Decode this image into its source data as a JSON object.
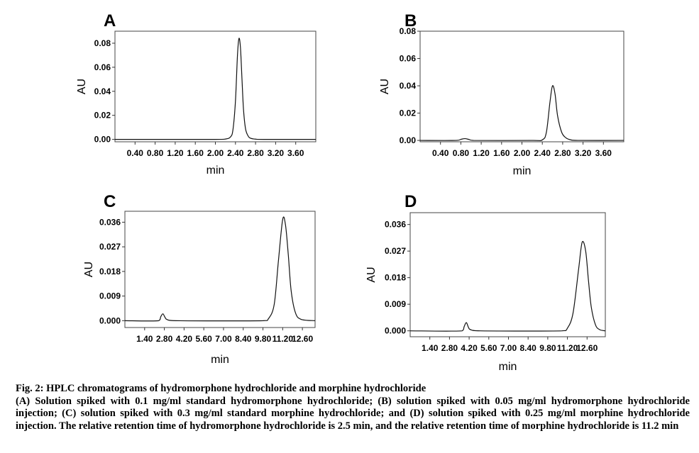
{
  "figure": {
    "caption_title": "Fig. 2: HPLC chromatograms of hydromorphone hydrochloride and morphine hydrochloride",
    "caption_body": "(A) Solution spiked with 0.1 mg/ml standard hydromorphone hydrochloride; (B) solution spiked with 0.05 mg/ml hydromorphone hydrochloride injection; (C) solution spiked with 0.3 mg/ml standard morphine hydrochloride; and (D) solution spiked with 0.25 mg/ml morphine hydrochloride injection. The relative retention time of hydromorphone hydrochloride is 2.5 min, and the relative retention time of morphine hydrochloride is 11.2 min"
  },
  "chart_data": [
    {
      "panel": "A",
      "type": "line",
      "xlabel": "min",
      "ylabel": "AU",
      "xlim": [
        0.0,
        4.0
      ],
      "ylim": [
        -0.002,
        0.09
      ],
      "xticks": [
        "0.40",
        "0.80",
        "1.20",
        "1.60",
        "2.00",
        "2.40",
        "2.80",
        "3.20",
        "3.60"
      ],
      "yticks": [
        "0.00",
        "0.02",
        "0.04",
        "0.06",
        "0.08"
      ],
      "grid": false,
      "series": [
        {
          "x": [
            0.0,
            1.0,
            2.0,
            2.2,
            2.3,
            2.35,
            2.4,
            2.44,
            2.47,
            2.5,
            2.53,
            2.56,
            2.6,
            2.65,
            2.7,
            2.8,
            3.0,
            4.0
          ],
          "values": [
            0.0,
            0.0,
            0.0,
            0.0003,
            0.002,
            0.008,
            0.032,
            0.07,
            0.084,
            0.076,
            0.05,
            0.025,
            0.009,
            0.003,
            0.001,
            0.0002,
            0.0,
            0.0
          ]
        }
      ]
    },
    {
      "panel": "B",
      "type": "line",
      "xlabel": "min",
      "ylabel": "AU",
      "xlim": [
        0.0,
        4.0
      ],
      "ylim": [
        -0.001,
        0.08
      ],
      "xticks": [
        "0.40",
        "0.80",
        "1.20",
        "1.60",
        "2.00",
        "2.40",
        "2.80",
        "3.20",
        "3.60"
      ],
      "yticks": [
        "0.00",
        "0.02",
        "0.04",
        "0.06",
        "0.08"
      ],
      "grid": false,
      "series": [
        {
          "x": [
            0.0,
            0.7,
            0.8,
            0.88,
            0.96,
            1.05,
            2.2,
            2.4,
            2.48,
            2.55,
            2.6,
            2.65,
            2.7,
            2.78,
            2.86,
            2.95,
            3.1,
            4.0
          ],
          "values": [
            0.0,
            0.0,
            0.0008,
            0.0013,
            0.0007,
            0.0,
            0.0,
            0.0004,
            0.006,
            0.028,
            0.04,
            0.034,
            0.018,
            0.006,
            0.002,
            0.0005,
            0.0,
            0.0
          ]
        }
      ]
    },
    {
      "panel": "C",
      "type": "line",
      "xlabel": "min",
      "ylabel": "AU",
      "xlim": [
        0.0,
        13.5
      ],
      "ylim": [
        -0.0025,
        0.04
      ],
      "xticks": [
        "1.40",
        "2.80",
        "4.20",
        "5.60",
        "7.00",
        "8.40",
        "9.80",
        "11.20",
        "12.60"
      ],
      "yticks": [
        "0.000",
        "0.009",
        "0.018",
        "0.027",
        "0.036"
      ],
      "grid": false,
      "series": [
        {
          "x": [
            0.0,
            2.4,
            2.55,
            2.7,
            2.85,
            3.0,
            3.6,
            9.8,
            10.2,
            10.6,
            10.9,
            11.2,
            11.4,
            11.6,
            11.8,
            12.1,
            12.5,
            13.5
          ],
          "values": [
            0.0,
            0.0,
            0.0015,
            0.0025,
            0.0012,
            0.0004,
            0.0,
            0.0,
            0.0008,
            0.006,
            0.022,
            0.037,
            0.035,
            0.024,
            0.011,
            0.003,
            0.0005,
            0.0
          ]
        }
      ]
    },
    {
      "panel": "D",
      "type": "line",
      "xlabel": "min",
      "ylabel": "AU",
      "xlim": [
        0.0,
        13.9
      ],
      "ylim": [
        -0.002,
        0.04
      ],
      "xticks": [
        "1.40",
        "2.80",
        "4.20",
        "5.60",
        "7.00",
        "8.40",
        "9.80",
        "11.20",
        "12.60"
      ],
      "yticks": [
        "0.000",
        "0.009",
        "0.018",
        "0.027",
        "0.036"
      ],
      "grid": false,
      "series": [
        {
          "x": [
            0.0,
            3.7,
            3.85,
            4.0,
            4.15,
            4.3,
            5.0,
            10.8,
            11.2,
            11.6,
            12.0,
            12.25,
            12.5,
            12.7,
            12.9,
            13.2,
            13.5,
            13.9
          ],
          "values": [
            0.0,
            0.0,
            0.0015,
            0.0028,
            0.0012,
            0.0004,
            0.0,
            0.0,
            0.0009,
            0.006,
            0.021,
            0.03,
            0.027,
            0.017,
            0.008,
            0.002,
            0.0004,
            0.0
          ]
        }
      ]
    }
  ]
}
